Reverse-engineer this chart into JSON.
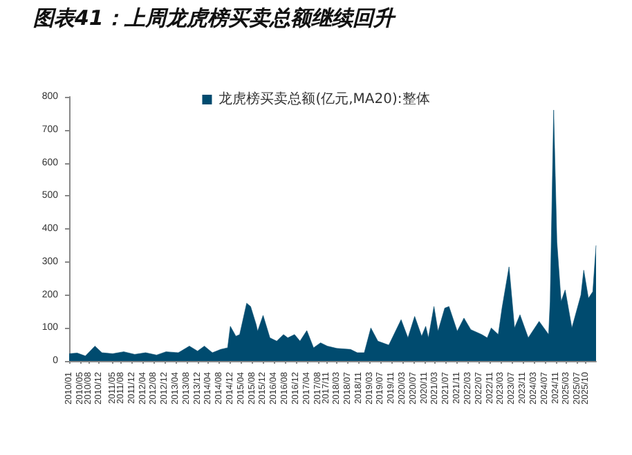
{
  "chart_data": {
    "type": "area",
    "title": "图表41：上周龙虎榜买卖总额继续回升",
    "x": [
      "2010-01",
      "2010-04",
      "2010-07",
      "2010-10-15",
      "2011-01",
      "2011-05",
      "2011-09",
      "2012-01",
      "2012-05",
      "2012-09",
      "2012-12-15",
      "2013-05",
      "2013-09",
      "2013-12",
      "2014-02-15",
      "2014-05-15",
      "2014-08-15",
      "2014-11",
      "2014-12",
      "2015-02",
      "2015-03-15",
      "2015-06",
      "2015-07-15",
      "2015-09-15",
      "2015-10",
      "2015-12",
      "2016-02-15",
      "2016-05",
      "2016-07-15",
      "2016-09",
      "2016-11-15",
      "2017-01-15",
      "2017-04",
      "2017-06-15",
      "2017-09",
      "2017-11-15",
      "2018-03",
      "2018-08",
      "2018-10-15",
      "2019-01",
      "2019-03-15",
      "2019-06",
      "2019-10",
      "2020-02-15",
      "2020-05",
      "2020-07-15",
      "2020-10",
      "2020-11-15",
      "2020-12-15",
      "2021-02-15",
      "2021-04",
      "2021-06-15",
      "2021-08",
      "2021-11",
      "2022-01-15",
      "2022-04",
      "2022-08",
      "2022-10",
      "2022-11-15",
      "2023-02",
      "2023-03-15",
      "2023-06",
      "2023-08",
      "2023-10",
      "2024-01",
      "2024-05",
      "2024-08-15",
      "2024-09",
      "2024-10-10",
      "2024-11-15",
      "2025-01",
      "2025-02-15",
      "2025-05",
      "2025-08-10",
      "2025-09-10",
      "2025-11",
      "2025-12-20",
      "2026-01-25"
    ],
    "series": [
      {
        "name": "龙虎榜买卖总额(亿元,MA20):整体",
        "color": "#004b6f",
        "values": [
          22,
          24,
          15,
          45,
          25,
          22,
          28,
          20,
          25,
          18,
          28,
          25,
          45,
          30,
          45,
          25,
          35,
          40,
          105,
          75,
          80,
          175,
          165,
          110,
          90,
          138,
          70,
          60,
          80,
          70,
          80,
          60,
          92,
          40,
          55,
          45,
          38,
          35,
          25,
          25,
          100,
          60,
          48,
          125,
          70,
          135,
          75,
          105,
          70,
          165,
          90,
          160,
          165,
          90,
          130,
          95,
          80,
          70,
          100,
          80,
          160,
          285,
          100,
          140,
          70,
          120,
          80,
          180,
          760,
          360,
          180,
          215,
          100,
          200,
          275,
          190,
          210,
          350
        ]
      }
    ],
    "xlim": [
      "2010-01",
      "2026-01-25"
    ],
    "xticks": [
      {
        "value": "2010-01",
        "label": "2010/01"
      },
      {
        "value": "2010-05",
        "label": "2010/05"
      },
      {
        "value": "2010-08",
        "label": "2010/08"
      },
      {
        "value": "2010-12",
        "label": "2010/12"
      },
      {
        "value": "2011-05",
        "label": "2011/05"
      },
      {
        "value": "2011-08",
        "label": "2011/08"
      },
      {
        "value": "2011-12",
        "label": "2011/12"
      },
      {
        "value": "2012-04",
        "label": "2012/04"
      },
      {
        "value": "2012-08",
        "label": "2012/08"
      },
      {
        "value": "2012-12",
        "label": "2012/12"
      },
      {
        "value": "2013-04",
        "label": "2013/04"
      },
      {
        "value": "2013-08",
        "label": "2013/08"
      },
      {
        "value": "2013-12",
        "label": "2013/12"
      },
      {
        "value": "2014-04",
        "label": "2014/04"
      },
      {
        "value": "2014-08",
        "label": "2014/08"
      },
      {
        "value": "2014-12",
        "label": "2014/12"
      },
      {
        "value": "2015-04",
        "label": "2015/04"
      },
      {
        "value": "2015-08",
        "label": "2015/08"
      },
      {
        "value": "2015-12",
        "label": "2015/12"
      },
      {
        "value": "2016-04",
        "label": "2016/04"
      },
      {
        "value": "2016-08",
        "label": "2016/08"
      },
      {
        "value": "2016-12",
        "label": "2016/12"
      },
      {
        "value": "2017-04",
        "label": "2017/04"
      },
      {
        "value": "2017-08",
        "label": "2017/08"
      },
      {
        "value": "2017-11",
        "label": "2017/11"
      },
      {
        "value": "2018-03",
        "label": "2018/03"
      },
      {
        "value": "2018-07",
        "label": "2018/07"
      },
      {
        "value": "2018-11",
        "label": "2018/11"
      },
      {
        "value": "2019-03",
        "label": "2019/03"
      },
      {
        "value": "2019-07",
        "label": "2019/07"
      },
      {
        "value": "2019-11",
        "label": "2019/11"
      },
      {
        "value": "2020-03",
        "label": "2020/03"
      },
      {
        "value": "2020-07",
        "label": "2020/07"
      },
      {
        "value": "2020-11",
        "label": "2020/11"
      },
      {
        "value": "2021-03",
        "label": "2021/03"
      },
      {
        "value": "2021-07",
        "label": "2021/07"
      },
      {
        "value": "2021-11",
        "label": "2021/11"
      },
      {
        "value": "2022-03",
        "label": "2022/03"
      },
      {
        "value": "2022-07",
        "label": "2022/07"
      },
      {
        "value": "2022-11",
        "label": "2022/11"
      },
      {
        "value": "2023-03",
        "label": "2023/03"
      },
      {
        "value": "2023-07",
        "label": "2023/07"
      },
      {
        "value": "2023-11",
        "label": "2023/11"
      },
      {
        "value": "2024-03",
        "label": "2024/03"
      },
      {
        "value": "2024-07",
        "label": "2024/07"
      },
      {
        "value": "2024-11",
        "label": "2024/11"
      },
      {
        "value": "2025-03",
        "label": "2025/03"
      },
      {
        "value": "2025-07",
        "label": "2025/07"
      },
      {
        "value": "2025-10",
        "label": "2025/10"
      }
    ],
    "ylim": [
      0,
      800
    ],
    "yticks": [
      0,
      100,
      200,
      300,
      400,
      500,
      600,
      700,
      800
    ],
    "legend": "top",
    "marker": "none"
  }
}
